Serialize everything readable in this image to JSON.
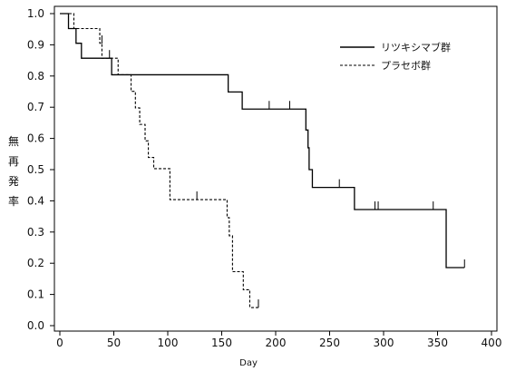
{
  "chart_data": {
    "type": "line",
    "step": true,
    "xlabel": "Day",
    "ylabel": "無再発率",
    "xlim": [
      0,
      400
    ],
    "ylim": [
      0.0,
      1.0
    ],
    "xticks": [
      0,
      50,
      100,
      150,
      200,
      250,
      300,
      350,
      400
    ],
    "yticks": [
      0.0,
      0.1,
      0.2,
      0.3,
      0.4,
      0.5,
      0.6,
      0.7,
      0.8,
      0.9,
      1.0
    ],
    "grid": false,
    "legend_position": "top-right",
    "series": [
      {
        "name": "リツキシマブ群",
        "style": "solid",
        "color": "#000000",
        "steps": [
          [
            0,
            1.0
          ],
          [
            8,
            0.952
          ],
          [
            15,
            0.905
          ],
          [
            20,
            0.857
          ],
          [
            45,
            0.857
          ],
          [
            48,
            0.804
          ],
          [
            155,
            0.804
          ],
          [
            156,
            0.749
          ],
          [
            168,
            0.749
          ],
          [
            169,
            0.694
          ],
          [
            224,
            0.694
          ],
          [
            228,
            0.627
          ],
          [
            230,
            0.57
          ],
          [
            231,
            0.5
          ],
          [
            234,
            0.443
          ],
          [
            272,
            0.443
          ],
          [
            273,
            0.372
          ],
          [
            357,
            0.372
          ],
          [
            358,
            0.186
          ],
          [
            375,
            0.186
          ]
        ],
        "censored": [
          [
            194,
            0.694
          ],
          [
            213,
            0.694
          ],
          [
            259,
            0.443
          ],
          [
            292,
            0.372
          ],
          [
            295,
            0.372
          ],
          [
            346,
            0.372
          ],
          [
            375,
            0.186
          ]
        ]
      },
      {
        "name": "プラセボ群",
        "style": "dashed",
        "color": "#000000",
        "steps": [
          [
            0,
            1.0
          ],
          [
            13,
            0.952
          ],
          [
            35,
            0.952
          ],
          [
            37,
            0.905
          ],
          [
            39,
            0.857
          ],
          [
            52,
            0.857
          ],
          [
            54,
            0.804
          ],
          [
            64,
            0.804
          ],
          [
            66,
            0.751
          ],
          [
            70,
            0.698
          ],
          [
            74,
            0.645
          ],
          [
            79,
            0.592
          ],
          [
            82,
            0.539
          ],
          [
            87,
            0.503
          ],
          [
            100,
            0.503
          ],
          [
            102,
            0.404
          ],
          [
            154,
            0.404
          ],
          [
            155,
            0.346
          ],
          [
            157,
            0.288
          ],
          [
            160,
            0.173
          ],
          [
            168,
            0.173
          ],
          [
            170,
            0.115
          ],
          [
            176,
            0.058
          ],
          [
            184,
            0.058
          ]
        ],
        "censored": [
          [
            39,
            0.904
          ],
          [
            46,
            0.857
          ],
          [
            127,
            0.404
          ],
          [
            184,
            0.058
          ]
        ]
      }
    ]
  }
}
